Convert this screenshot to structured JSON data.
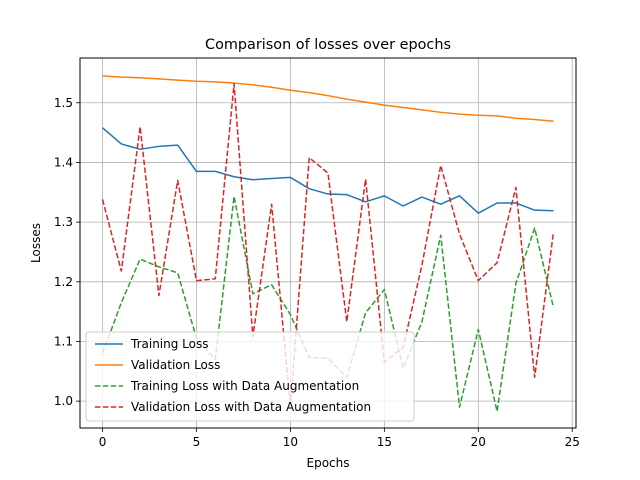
{
  "chart_data": {
    "type": "line",
    "title": "Comparison of losses over epochs",
    "xlabel": "Epochs",
    "ylabel": "Losses",
    "xlim": [
      -1.2,
      25.2
    ],
    "ylim": [
      0.955,
      1.575
    ],
    "xticks": [
      0,
      5,
      10,
      15,
      20,
      25
    ],
    "yticks": [
      1.0,
      1.1,
      1.2,
      1.3,
      1.4,
      1.5
    ],
    "ytick_labels": [
      "1.0",
      "1.1",
      "1.2",
      "1.3",
      "1.4",
      "1.5"
    ],
    "grid": true,
    "legend_position": "lower-left",
    "x": [
      0,
      1,
      2,
      3,
      4,
      5,
      6,
      7,
      8,
      9,
      10,
      11,
      12,
      13,
      14,
      15,
      16,
      17,
      18,
      19,
      20,
      21,
      22,
      23,
      24
    ],
    "series": [
      {
        "name": "Training Loss",
        "color": "#1f77b4",
        "dash": "solid",
        "values": [
          1.458,
          1.431,
          1.422,
          1.427,
          1.429,
          1.385,
          1.385,
          1.376,
          1.371,
          1.373,
          1.375,
          1.356,
          1.347,
          1.346,
          1.334,
          1.344,
          1.327,
          1.342,
          1.33,
          1.344,
          1.315,
          1.332,
          1.332,
          1.32,
          1.319
        ]
      },
      {
        "name": "Validation Loss",
        "color": "#ff7f0e",
        "dash": "solid",
        "values": [
          1.545,
          1.543,
          1.542,
          1.54,
          1.538,
          1.536,
          1.535,
          1.533,
          1.53,
          1.526,
          1.521,
          1.517,
          1.512,
          1.506,
          1.501,
          1.496,
          1.492,
          1.488,
          1.484,
          1.481,
          1.479,
          1.478,
          1.474,
          1.472,
          1.469
        ]
      },
      {
        "name": "Training Loss with Data Augmentation",
        "color": "#2ca02c",
        "dash": "dashed",
        "values": [
          1.08,
          1.165,
          1.238,
          1.225,
          1.215,
          1.105,
          1.07,
          1.343,
          1.18,
          1.195,
          1.145,
          1.073,
          1.072,
          1.04,
          1.148,
          1.187,
          1.055,
          1.133,
          1.278,
          0.99,
          1.12,
          0.983,
          1.197,
          1.29,
          1.157
        ]
      },
      {
        "name": "Validation Loss with Data Augmentation",
        "color": "#d62728",
        "dash": "dashed",
        "values": [
          1.338,
          1.218,
          1.46,
          1.177,
          1.37,
          1.202,
          1.205,
          1.532,
          1.108,
          1.33,
          0.99,
          1.408,
          1.382,
          1.133,
          1.372,
          1.065,
          1.09,
          1.228,
          1.395,
          1.28,
          1.202,
          1.232,
          1.358,
          1.04,
          1.283
        ]
      }
    ]
  }
}
